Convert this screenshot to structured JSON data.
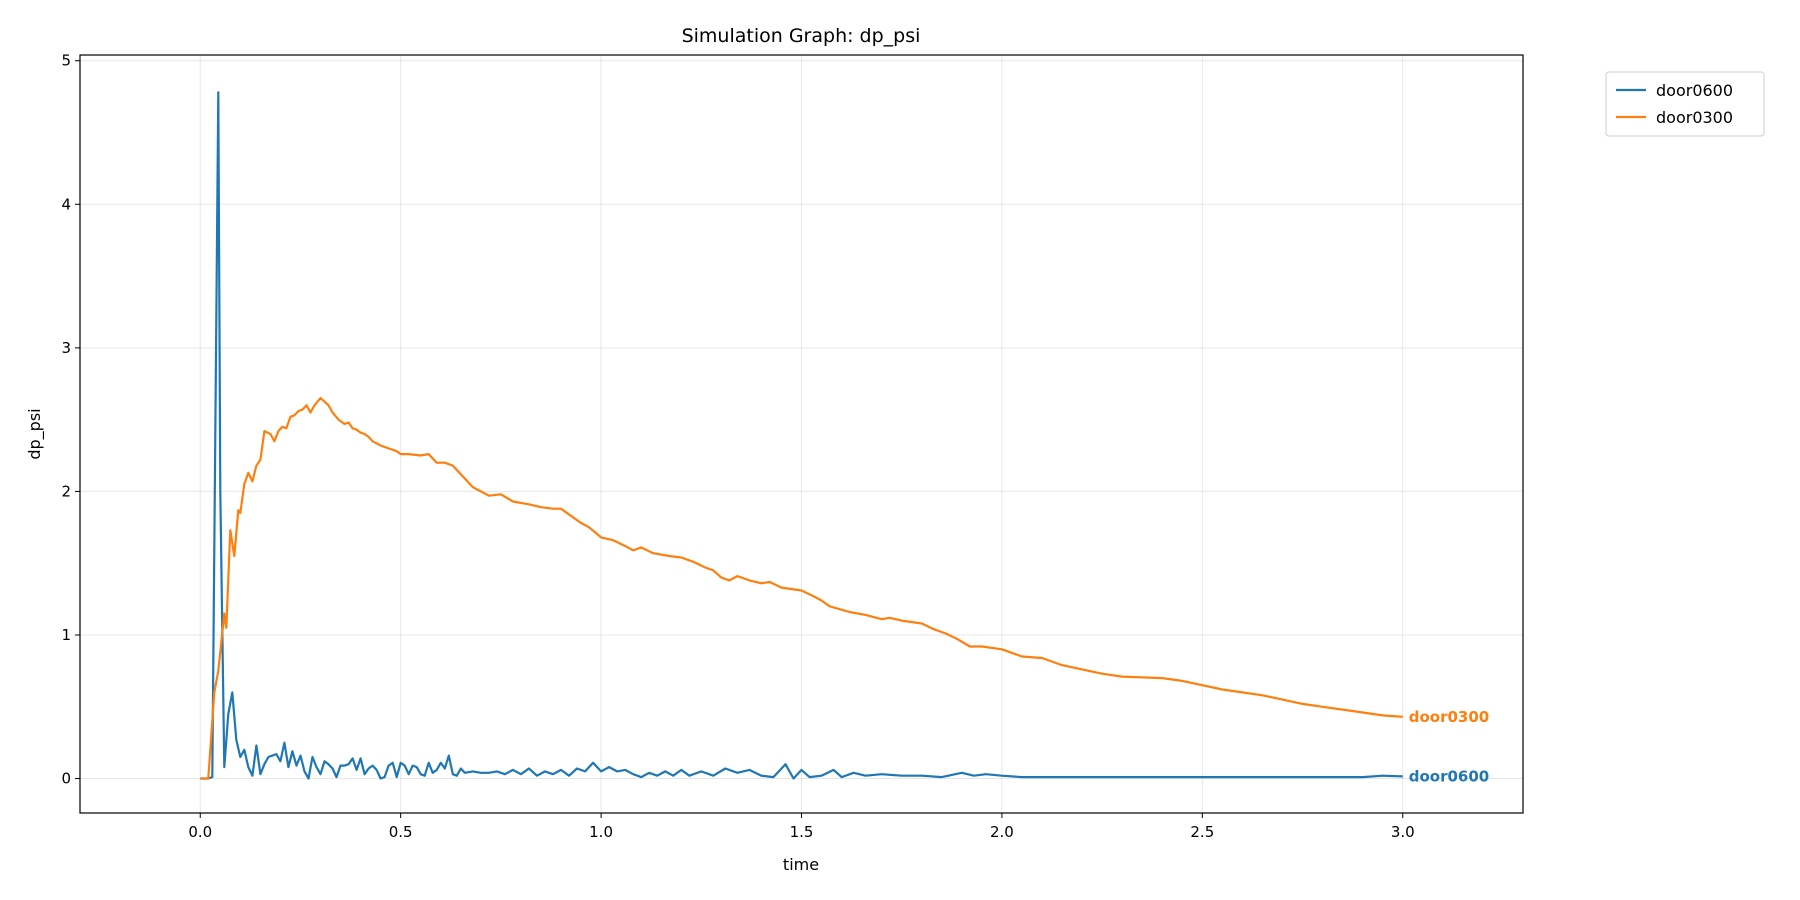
{
  "chart_data": {
    "type": "line",
    "title": "Simulation Graph: dp_psi",
    "xlabel": "time",
    "ylabel": "dp_psi",
    "xlim": [
      -0.3,
      3.3
    ],
    "ylim": [
      -0.24,
      5.04
    ],
    "xticks": [
      0.0,
      0.5,
      1.0,
      1.5,
      2.0,
      2.5,
      3.0
    ],
    "xtick_labels": [
      "0.0",
      "0.5",
      "1.0",
      "1.5",
      "2.0",
      "2.5",
      "3.0"
    ],
    "yticks": [
      0,
      1,
      2,
      3,
      4,
      5
    ],
    "ytick_labels": [
      "0",
      "1",
      "2",
      "3",
      "4",
      "5"
    ],
    "grid": true,
    "legend_placement": "outside-top-right",
    "series": [
      {
        "name": "door0600",
        "color": "#1f77b4",
        "end_label": "door0600",
        "x": [
          0,
          0.01,
          0.02,
          0.03,
          0.045,
          0.05,
          0.06,
          0.07,
          0.08,
          0.09,
          0.1,
          0.11,
          0.12,
          0.13,
          0.14,
          0.15,
          0.16,
          0.17,
          0.18,
          0.19,
          0.2,
          0.21,
          0.22,
          0.23,
          0.24,
          0.25,
          0.26,
          0.27,
          0.28,
          0.29,
          0.3,
          0.31,
          0.32,
          0.33,
          0.34,
          0.35,
          0.36,
          0.37,
          0.38,
          0.39,
          0.4,
          0.41,
          0.42,
          0.43,
          0.44,
          0.45,
          0.46,
          0.47,
          0.48,
          0.49,
          0.5,
          0.51,
          0.52,
          0.53,
          0.54,
          0.55,
          0.56,
          0.57,
          0.58,
          0.59,
          0.6,
          0.61,
          0.62,
          0.63,
          0.64,
          0.65,
          0.66,
          0.68,
          0.7,
          0.72,
          0.74,
          0.76,
          0.78,
          0.8,
          0.82,
          0.84,
          0.86,
          0.88,
          0.9,
          0.92,
          0.94,
          0.96,
          0.98,
          1.0,
          1.02,
          1.04,
          1.06,
          1.08,
          1.1,
          1.12,
          1.14,
          1.16,
          1.18,
          1.2,
          1.22,
          1.25,
          1.28,
          1.31,
          1.34,
          1.37,
          1.4,
          1.43,
          1.46,
          1.48,
          1.5,
          1.52,
          1.55,
          1.58,
          1.6,
          1.63,
          1.66,
          1.7,
          1.75,
          1.8,
          1.85,
          1.9,
          1.93,
          1.96,
          2.0,
          2.05,
          2.1,
          2.2,
          2.3,
          2.4,
          2.5,
          2.6,
          2.7,
          2.8,
          2.9,
          2.95,
          3.0
        ],
        "y": [
          0,
          0,
          0,
          0.01,
          4.78,
          2.0,
          0.08,
          0.45,
          0.6,
          0.27,
          0.15,
          0.2,
          0.08,
          0.02,
          0.23,
          0.03,
          0.1,
          0.15,
          0.16,
          0.17,
          0.12,
          0.25,
          0.08,
          0.19,
          0.09,
          0.16,
          0.05,
          0.0,
          0.15,
          0.08,
          0.03,
          0.12,
          0.1,
          0.07,
          0.01,
          0.09,
          0.09,
          0.1,
          0.14,
          0.06,
          0.14,
          0.03,
          0.07,
          0.09,
          0.06,
          0.0,
          0.01,
          0.09,
          0.11,
          0.01,
          0.11,
          0.09,
          0.03,
          0.09,
          0.08,
          0.03,
          0.02,
          0.11,
          0.04,
          0.06,
          0.11,
          0.07,
          0.16,
          0.03,
          0.02,
          0.07,
          0.04,
          0.05,
          0.04,
          0.04,
          0.05,
          0.03,
          0.06,
          0.03,
          0.07,
          0.02,
          0.05,
          0.03,
          0.06,
          0.02,
          0.07,
          0.05,
          0.11,
          0.05,
          0.08,
          0.05,
          0.06,
          0.03,
          0.01,
          0.04,
          0.02,
          0.05,
          0.02,
          0.06,
          0.02,
          0.05,
          0.02,
          0.07,
          0.04,
          0.06,
          0.02,
          0.01,
          0.1,
          0.0,
          0.06,
          0.01,
          0.02,
          0.06,
          0.01,
          0.04,
          0.02,
          0.03,
          0.02,
          0.02,
          0.01,
          0.04,
          0.02,
          0.03,
          0.02,
          0.01,
          0.01,
          0.01,
          0.01,
          0.01,
          0.01,
          0.01,
          0.01,
          0.01,
          0.01,
          0.02,
          0.015
        ]
      },
      {
        "name": "door0300",
        "color": "#ff7f0e",
        "end_label": "door0300",
        "x": [
          0,
          0.01,
          0.02,
          0.035,
          0.045,
          0.06,
          0.065,
          0.075,
          0.085,
          0.095,
          0.1,
          0.11,
          0.12,
          0.13,
          0.14,
          0.15,
          0.16,
          0.175,
          0.185,
          0.195,
          0.205,
          0.215,
          0.225,
          0.235,
          0.245,
          0.255,
          0.265,
          0.275,
          0.285,
          0.3,
          0.32,
          0.33,
          0.345,
          0.36,
          0.37,
          0.38,
          0.39,
          0.4,
          0.41,
          0.42,
          0.43,
          0.45,
          0.47,
          0.49,
          0.5,
          0.52,
          0.55,
          0.57,
          0.59,
          0.61,
          0.63,
          0.65,
          0.68,
          0.7,
          0.72,
          0.75,
          0.78,
          0.82,
          0.85,
          0.88,
          0.9,
          0.93,
          0.95,
          0.97,
          1.0,
          1.03,
          1.06,
          1.08,
          1.1,
          1.13,
          1.17,
          1.2,
          1.23,
          1.26,
          1.28,
          1.3,
          1.32,
          1.34,
          1.37,
          1.4,
          1.42,
          1.45,
          1.5,
          1.53,
          1.55,
          1.57,
          1.62,
          1.66,
          1.7,
          1.72,
          1.75,
          1.8,
          1.83,
          1.86,
          1.89,
          1.92,
          1.95,
          2.0,
          2.05,
          2.1,
          2.15,
          2.2,
          2.25,
          2.3,
          2.4,
          2.45,
          2.5,
          2.55,
          2.6,
          2.65,
          2.7,
          2.75,
          2.8,
          2.85,
          2.9,
          2.95,
          3.0
        ],
        "y": [
          0,
          0,
          0,
          0.6,
          0.75,
          1.15,
          1.05,
          1.73,
          1.55,
          1.87,
          1.85,
          2.05,
          2.13,
          2.07,
          2.18,
          2.22,
          2.42,
          2.4,
          2.35,
          2.42,
          2.45,
          2.44,
          2.52,
          2.53,
          2.56,
          2.57,
          2.6,
          2.55,
          2.6,
          2.65,
          2.6,
          2.55,
          2.5,
          2.47,
          2.48,
          2.44,
          2.43,
          2.41,
          2.4,
          2.38,
          2.35,
          2.32,
          2.3,
          2.28,
          2.26,
          2.26,
          2.25,
          2.26,
          2.2,
          2.2,
          2.18,
          2.12,
          2.03,
          2.0,
          1.97,
          1.98,
          1.93,
          1.91,
          1.89,
          1.88,
          1.88,
          1.82,
          1.78,
          1.75,
          1.68,
          1.66,
          1.62,
          1.59,
          1.61,
          1.57,
          1.55,
          1.54,
          1.51,
          1.47,
          1.45,
          1.4,
          1.38,
          1.41,
          1.38,
          1.36,
          1.37,
          1.33,
          1.31,
          1.27,
          1.24,
          1.2,
          1.16,
          1.14,
          1.11,
          1.12,
          1.1,
          1.08,
          1.04,
          1.01,
          0.97,
          0.92,
          0.92,
          0.9,
          0.85,
          0.84,
          0.79,
          0.76,
          0.73,
          0.71,
          0.7,
          0.68,
          0.65,
          0.62,
          0.6,
          0.58,
          0.55,
          0.52,
          0.5,
          0.48,
          0.46,
          0.44,
          0.43
        ]
      }
    ]
  }
}
